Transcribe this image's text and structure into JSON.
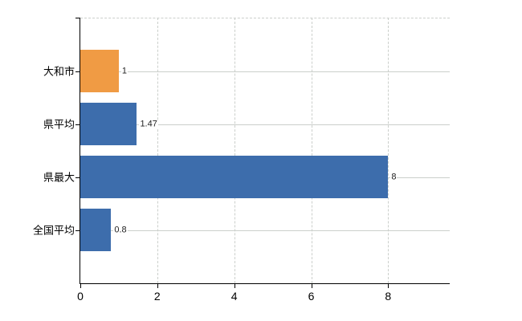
{
  "chart_data": {
    "type": "bar",
    "orientation": "horizontal",
    "title": "",
    "categories": [
      "大和市",
      "県平均",
      "県最大",
      "全国平均"
    ],
    "values": [
      1,
      1.47,
      8,
      0.8
    ],
    "value_labels": [
      "1",
      "1.47",
      "8",
      "0.8"
    ],
    "bar_colors": [
      "#f09b44",
      "#3d6dac",
      "#3d6dac",
      "#3d6dac"
    ],
    "highlight_category": "大和市",
    "x_axis": {
      "min": 0,
      "max": 9.6,
      "ticks": [
        0,
        2,
        4,
        6,
        8
      ],
      "tick_labels": [
        "0",
        "2",
        "4",
        "6",
        "8"
      ]
    },
    "legend": null,
    "grid": {
      "horizontal_lines": "solid",
      "vertical_lines": "dashed",
      "top_border": "dashed"
    },
    "colors": {
      "bar_blue": "#3d6dac",
      "bar_orange": "#f09b44",
      "gridline": "#cbcfcb",
      "axis": "#000000",
      "text": "#000000",
      "value_text": "#222222",
      "background": "#ffffff"
    }
  }
}
